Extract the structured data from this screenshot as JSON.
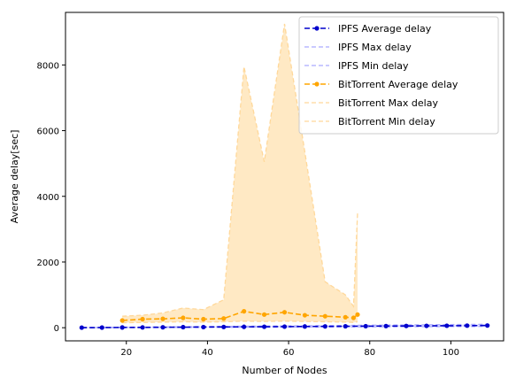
{
  "chart_data": {
    "type": "line",
    "xlabel": "Number of Nodes",
    "ylabel": "Average delay[sec]",
    "xlim": [
      5,
      113
    ],
    "ylim": [
      -400,
      9600
    ],
    "xticks": [
      20,
      40,
      60,
      80,
      100
    ],
    "yticks": [
      0,
      2000,
      4000,
      6000,
      8000
    ],
    "grid": false,
    "legend_position": "top-right",
    "series": [
      {
        "name": "IPFS Average delay",
        "role": "average",
        "color": "#0000cc",
        "x": [
          9,
          14,
          19,
          24,
          29,
          34,
          39,
          44,
          49,
          54,
          59,
          64,
          69,
          74,
          79,
          84,
          89,
          94,
          99,
          104,
          109
        ],
        "y": [
          2,
          5,
          8,
          10,
          13,
          17,
          20,
          23,
          27,
          30,
          33,
          37,
          40,
          43,
          47,
          50,
          53,
          57,
          60,
          63,
          67
        ]
      },
      {
        "name": "IPFS Max delay",
        "role": "band-max",
        "color": "#aaaaff",
        "x": [
          9,
          14,
          19,
          24,
          29,
          34,
          39,
          44,
          49,
          54,
          59,
          64,
          69,
          74,
          79,
          84,
          89,
          94,
          99,
          104,
          109
        ],
        "y": [
          5,
          10,
          15,
          20,
          25,
          30,
          35,
          40,
          45,
          50,
          55,
          60,
          65,
          70,
          75,
          80,
          85,
          90,
          95,
          100,
          105
        ]
      },
      {
        "name": "IPFS Min delay",
        "role": "band-min",
        "color": "#aaaaff",
        "x": [
          9,
          14,
          19,
          24,
          29,
          34,
          39,
          44,
          49,
          54,
          59,
          64,
          69,
          74,
          79,
          84,
          89,
          94,
          99,
          104,
          109
        ],
        "y": [
          0,
          2,
          4,
          5,
          7,
          9,
          10,
          12,
          14,
          16,
          18,
          20,
          22,
          24,
          26,
          28,
          30,
          32,
          34,
          36,
          38
        ]
      },
      {
        "name": "BitTorrent Average delay",
        "role": "average",
        "color": "#ffa500",
        "x": [
          19,
          24,
          29,
          34,
          39,
          44,
          49,
          54,
          59,
          64,
          69,
          74,
          76,
          77
        ],
        "y": [
          220,
          260,
          270,
          300,
          260,
          280,
          500,
          400,
          470,
          380,
          350,
          320,
          300,
          400
        ]
      },
      {
        "name": "BitTorrent Max delay",
        "role": "band-max",
        "color": "#ffd89a",
        "x": [
          19,
          24,
          29,
          34,
          39,
          44,
          49,
          54,
          59,
          64,
          69,
          74,
          76,
          77
        ],
        "y": [
          350,
          380,
          450,
          600,
          550,
          850,
          7950,
          5050,
          9250,
          5350,
          1400,
          1000,
          650,
          3500
        ]
      },
      {
        "name": "BitTorrent Min delay",
        "role": "band-min",
        "color": "#ffd89a",
        "x": [
          19,
          24,
          29,
          34,
          39,
          44,
          49,
          54,
          59,
          64,
          69,
          74,
          76,
          77
        ],
        "y": [
          150,
          160,
          170,
          180,
          170,
          180,
          200,
          190,
          200,
          190,
          180,
          170,
          160,
          180
        ]
      }
    ],
    "fill_color": "#ffe9c4"
  }
}
